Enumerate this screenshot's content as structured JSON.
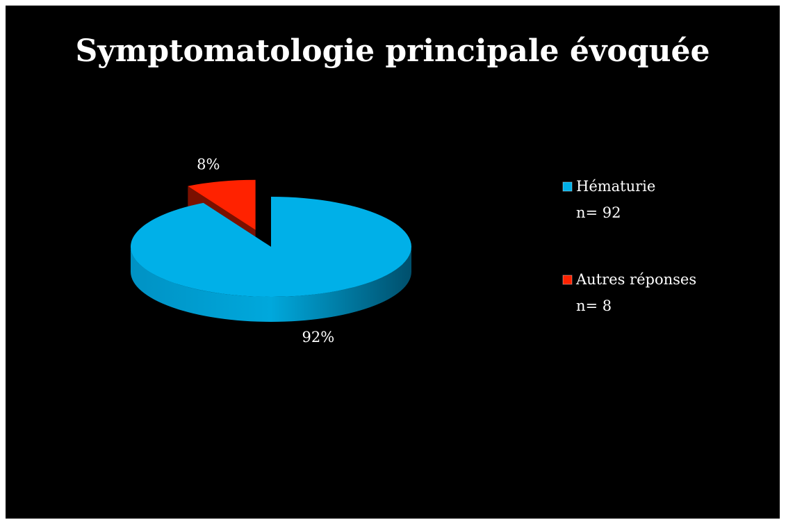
{
  "chart_data": {
    "type": "pie",
    "title": "Symptomatologie principale évoquée",
    "categories": [
      "Hématurie\nn= 92",
      "Autres réponses\nn= 8"
    ],
    "values": [
      92,
      8
    ],
    "value_labels": [
      "92%",
      "8%"
    ],
    "colors": [
      "#00b0e8",
      "#ff2200"
    ],
    "legend": "right"
  }
}
